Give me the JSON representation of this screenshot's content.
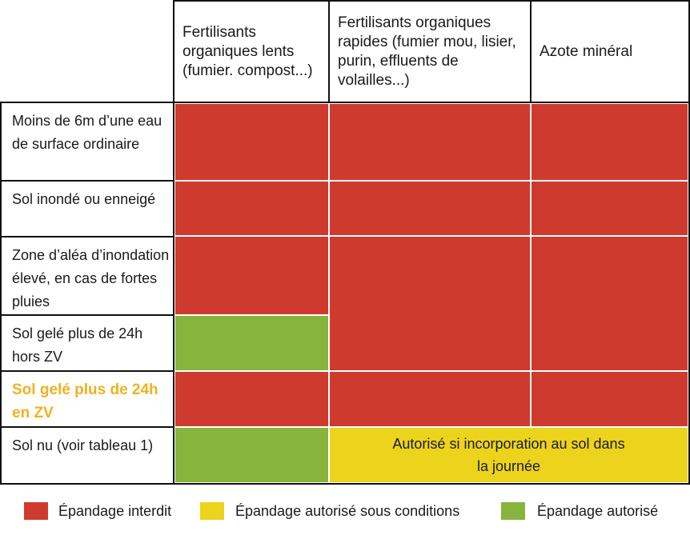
{
  "table": {
    "columns": [
      "Fertilisants organiques lents (fumier. compost...)",
      "Fertilisants organiques rapides (fumier mou, lisier, purin, effluents de volailles...)",
      "Azote minéral"
    ],
    "rows": [
      "Moins de 6m d’une eau de surface ordinaire",
      "Sol inondé ou enneigé",
      "Zone d’aléa d’inondation élevé, en cas de fortes pluies",
      "Sol gelé plus de 24h hors ZV",
      "Sol gelé plus de 24h en ZV",
      "Sol nu (voir tableau 1)"
    ],
    "cells": {
      "r1": [
        "interdit",
        "interdit",
        "interdit"
      ],
      "r2": [
        "interdit",
        "interdit",
        "interdit"
      ],
      "r3": [
        "interdit",
        "interdit",
        "interdit"
      ],
      "r4": [
        "autorisé",
        "interdit",
        "interdit"
      ],
      "r5": [
        "interdit",
        "interdit",
        "interdit"
      ],
      "r6": [
        "autorisé",
        "sous conditions",
        "sous conditions"
      ]
    },
    "conditional_note": "Autorisé si incorporation au sol dans la journée"
  },
  "legend": {
    "forbidden": "Épandage interdit",
    "conditional": "Épandage autorisé sous conditions",
    "allowed": "Épandage autorisé"
  },
  "colors": {
    "forbidden": "#cf3a2e",
    "conditional": "#ecd31c",
    "allowed": "#86b43c",
    "highlight_text": "#f0b21e"
  }
}
